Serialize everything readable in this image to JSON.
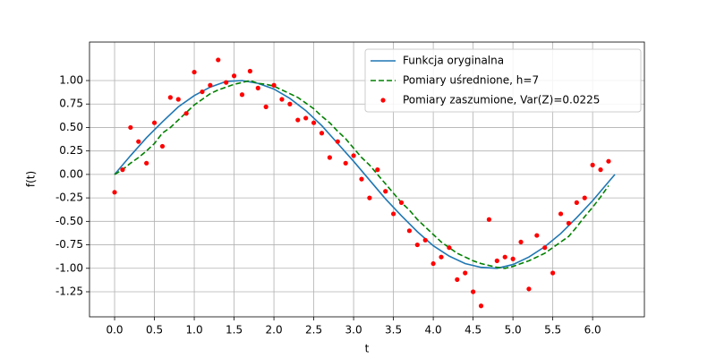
{
  "chart_data": {
    "type": "line",
    "xlabel": "t",
    "ylabel": "f(t)",
    "xlim": [
      -0.315,
      6.65
    ],
    "ylim": [
      -1.517,
      1.41
    ],
    "xticks": [
      {
        "value": 0,
        "label": "0.0"
      },
      0.5,
      {
        "value": 1,
        "label": "1.0"
      },
      1.5,
      {
        "value": 2,
        "label": "2.0"
      },
      2.5,
      {
        "value": 3,
        "label": "3.0"
      },
      3.5,
      {
        "value": 4,
        "label": "4.0"
      },
      4.5,
      {
        "value": 5,
        "label": "5.0"
      },
      5.5,
      {
        "value": 6,
        "label": "6.0"
      }
    ],
    "yticks": [
      -1.25,
      {
        "value": -1,
        "label": "-1.00"
      },
      -0.75,
      {
        "value": -0.5,
        "label": "-0.50"
      },
      -0.25,
      {
        "value": 0,
        "label": "0.00"
      },
      0.25,
      {
        "value": 0.5,
        "label": "0.50"
      },
      0.75,
      {
        "value": 1,
        "label": "1.00"
      }
    ],
    "grid": true,
    "legend": "upper right",
    "series": [
      {
        "name": "Funkcja oryginalna",
        "color": "#1f77b4",
        "linestyle": "solid",
        "x": [
          0,
          0.2,
          0.4,
          0.6,
          0.8,
          1.0,
          1.2,
          1.4,
          1.6,
          1.8,
          2.0,
          2.2,
          2.4,
          2.6,
          2.8,
          3.0,
          3.2,
          3.4,
          3.6,
          3.8,
          4.0,
          4.2,
          4.4,
          4.6,
          4.8,
          5.0,
          5.2,
          5.4,
          5.6,
          5.8,
          6.0,
          6.2,
          6.28
        ],
        "values": [
          0,
          0.2,
          0.39,
          0.56,
          0.72,
          0.84,
          0.93,
          0.99,
          1.0,
          0.97,
          0.91,
          0.81,
          0.68,
          0.52,
          0.33,
          0.14,
          -0.06,
          -0.26,
          -0.44,
          -0.61,
          -0.76,
          -0.87,
          -0.95,
          -0.99,
          -1.0,
          -0.96,
          -0.88,
          -0.77,
          -0.63,
          -0.46,
          -0.28,
          -0.08,
          0
        ]
      },
      {
        "name": "Pomiary uśrednione, h=7",
        "color": "#008000",
        "linestyle": "dashed",
        "x": [
          0,
          0.1,
          0.2,
          0.3,
          0.4,
          0.5,
          0.6,
          0.7,
          0.8,
          0.9,
          1.0,
          1.1,
          1.2,
          1.3,
          1.4,
          1.5,
          1.6,
          1.7,
          1.8,
          1.9,
          2.0,
          2.1,
          2.2,
          2.3,
          2.4,
          2.5,
          2.6,
          2.7,
          2.8,
          2.9,
          3.0,
          3.1,
          3.2,
          3.3,
          3.4,
          3.5,
          3.6,
          3.7,
          3.8,
          3.9,
          4.0,
          4.1,
          4.2,
          4.3,
          4.4,
          4.5,
          4.6,
          4.7,
          4.8,
          4.9,
          5.0,
          5.1,
          5.2,
          5.3,
          5.4,
          5.5,
          5.6,
          5.7,
          5.8,
          5.9,
          6.0,
          6.1,
          6.2
        ],
        "values": [
          0,
          0.05,
          0.12,
          0.18,
          0.25,
          0.33,
          0.44,
          0.5,
          0.58,
          0.66,
          0.74,
          0.8,
          0.86,
          0.9,
          0.93,
          0.96,
          0.98,
          1.0,
          0.97,
          0.96,
          0.94,
          0.9,
          0.86,
          0.82,
          0.76,
          0.7,
          0.62,
          0.55,
          0.46,
          0.38,
          0.28,
          0.18,
          0.1,
          0.0,
          -0.1,
          -0.2,
          -0.3,
          -0.38,
          -0.48,
          -0.56,
          -0.64,
          -0.72,
          -0.78,
          -0.84,
          -0.88,
          -0.92,
          -0.95,
          -0.97,
          -0.99,
          -1.0,
          -0.98,
          -0.95,
          -0.92,
          -0.88,
          -0.84,
          -0.78,
          -0.72,
          -0.66,
          -0.56,
          -0.45,
          -0.35,
          -0.24,
          -0.12
        ]
      },
      {
        "name": "Pomiary zaszumione, Var(Z)=0.0225",
        "color": "#ff0000",
        "linestyle": "none",
        "marker": "circle",
        "x": [
          0,
          0.1,
          0.2,
          0.3,
          0.4,
          0.5,
          0.6,
          0.7,
          0.8,
          0.9,
          1.0,
          1.1,
          1.2,
          1.3,
          1.4,
          1.5,
          1.6,
          1.7,
          1.8,
          1.9,
          2.0,
          2.1,
          2.2,
          2.3,
          2.4,
          2.5,
          2.6,
          2.7,
          2.8,
          2.9,
          3.0,
          3.1,
          3.2,
          3.3,
          3.4,
          3.5,
          3.6,
          3.7,
          3.8,
          3.9,
          4.0,
          4.1,
          4.2,
          4.3,
          4.4,
          4.5,
          4.6,
          4.7,
          4.8,
          4.9,
          5.0,
          5.1,
          5.2,
          5.3,
          5.4,
          5.5,
          5.6,
          5.7,
          5.8,
          5.9,
          6.0,
          6.1,
          6.2
        ],
        "values": [
          -0.19,
          0.05,
          0.5,
          0.35,
          0.12,
          0.55,
          0.3,
          0.82,
          0.8,
          0.65,
          1.09,
          0.88,
          0.95,
          1.22,
          0.98,
          1.05,
          0.85,
          1.1,
          0.92,
          0.72,
          0.95,
          0.8,
          0.75,
          0.58,
          0.6,
          0.55,
          0.44,
          0.18,
          0.35,
          0.12,
          0.2,
          -0.05,
          -0.25,
          0.05,
          -0.18,
          -0.42,
          -0.3,
          -0.6,
          -0.75,
          -0.7,
          -0.95,
          -0.88,
          -0.78,
          -1.12,
          -1.05,
          -1.25,
          -1.4,
          -0.48,
          -0.92,
          -0.88,
          -0.9,
          -0.72,
          -1.22,
          -0.65,
          -0.78,
          -1.05,
          -0.42,
          -0.52,
          -0.3,
          -0.25,
          0.1,
          0.05,
          0.14
        ]
      }
    ]
  }
}
